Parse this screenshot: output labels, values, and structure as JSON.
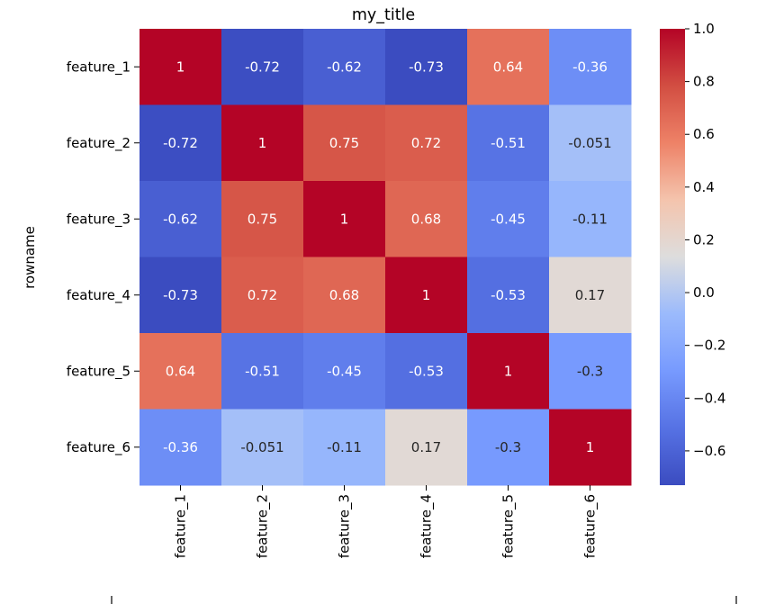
{
  "chart_data": {
    "type": "heatmap",
    "title": "my_title",
    "ylabel": "rowname",
    "xlabel": "",
    "x_categories": [
      "feature_1",
      "feature_2",
      "feature_3",
      "feature_4",
      "feature_5",
      "feature_6"
    ],
    "y_categories": [
      "feature_1",
      "feature_2",
      "feature_3",
      "feature_4",
      "feature_5",
      "feature_6"
    ],
    "values": [
      [
        1,
        -0.72,
        -0.62,
        -0.73,
        0.64,
        -0.36
      ],
      [
        -0.72,
        1,
        0.75,
        0.72,
        -0.51,
        -0.051
      ],
      [
        -0.62,
        0.75,
        1,
        0.68,
        -0.45,
        -0.11
      ],
      [
        -0.73,
        0.72,
        0.68,
        1,
        -0.53,
        0.17
      ],
      [
        0.64,
        -0.51,
        -0.45,
        -0.53,
        1,
        -0.3
      ],
      [
        -0.36,
        -0.051,
        -0.11,
        0.17,
        -0.3,
        1
      ]
    ],
    "annotations": [
      [
        "1",
        "-0.72",
        "-0.62",
        "-0.73",
        "0.64",
        "-0.36"
      ],
      [
        "-0.72",
        "1",
        "0.75",
        "0.72",
        "-0.51",
        "-0.051"
      ],
      [
        "-0.62",
        "0.75",
        "1",
        "0.68",
        "-0.45",
        "-0.11"
      ],
      [
        "-0.73",
        "0.72",
        "0.68",
        "1",
        "-0.53",
        "0.17"
      ],
      [
        "0.64",
        "-0.51",
        "-0.45",
        "-0.53",
        "1",
        "-0.3"
      ],
      [
        "-0.36",
        "-0.051",
        "-0.11",
        "0.17",
        "-0.3",
        "1"
      ]
    ],
    "colormap": "coolwarm",
    "color_range": [
      -0.73,
      1.0
    ],
    "colorbar": {
      "ticks": [
        1.0,
        0.8,
        0.6,
        0.4,
        0.2,
        0.0,
        -0.2,
        -0.4,
        -0.6
      ],
      "tick_labels": [
        "1.0",
        "0.8",
        "0.6",
        "0.4",
        "0.2",
        "0.0",
        "−0.2",
        "−0.4",
        "−0.6"
      ]
    },
    "colors": {
      "cool_end": "#3b4cc0",
      "mid": "#dddddd",
      "warm_end": "#b40426"
    }
  }
}
